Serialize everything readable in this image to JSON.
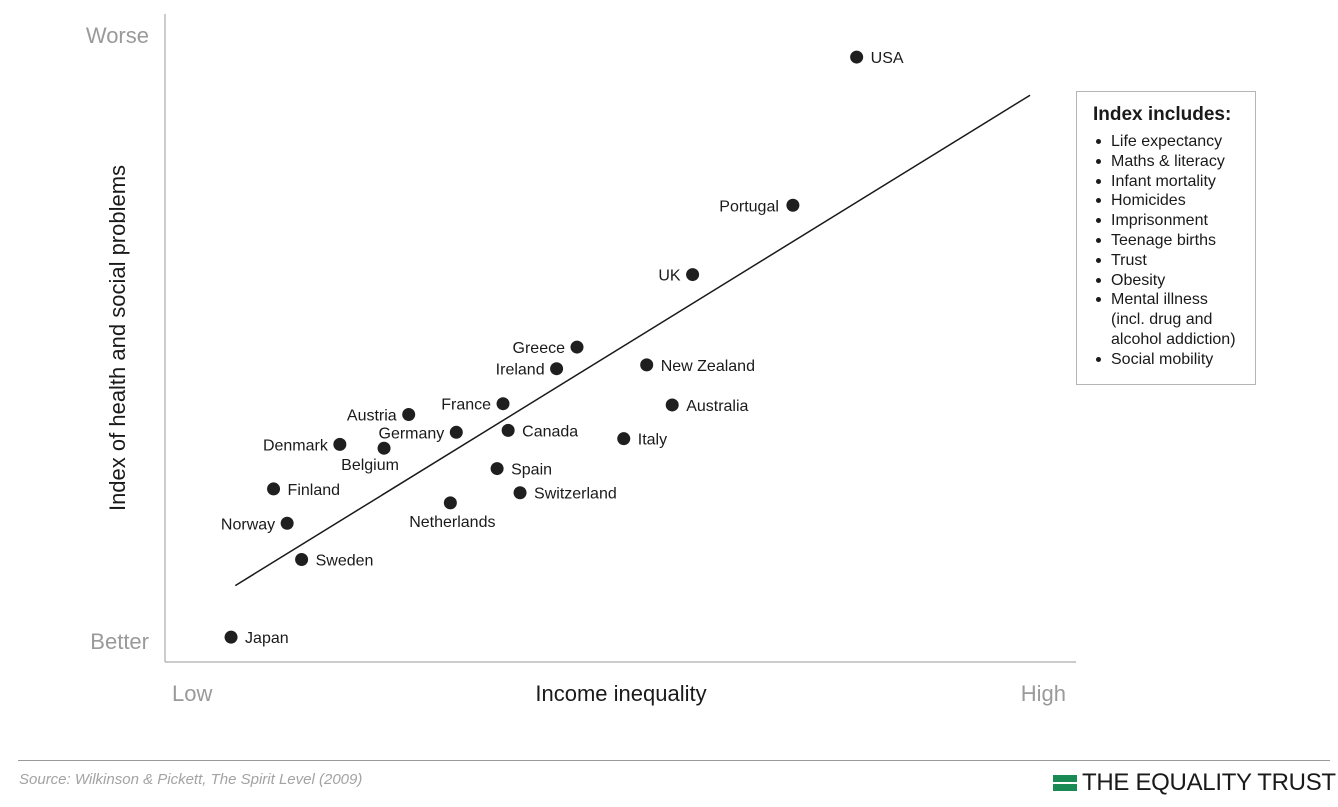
{
  "chart_data": {
    "type": "scatter",
    "xlabel": "Income inequality",
    "ylabel": "Index of health and social problems",
    "x_low_label": "Low",
    "x_high_label": "High",
    "y_low_label": "Better",
    "y_high_label": "Worse",
    "xlim": [
      0,
      100
    ],
    "ylim": [
      0,
      100
    ],
    "points": [
      {
        "label": "USA",
        "x": 78.9,
        "y": 94.8
      },
      {
        "label": "Portugal",
        "x": 71.4,
        "y": 71.5
      },
      {
        "label": "UK",
        "x": 59.6,
        "y": 60.6
      },
      {
        "label": "Greece",
        "x": 46.0,
        "y": 49.2
      },
      {
        "label": "Ireland",
        "x": 43.6,
        "y": 45.8
      },
      {
        "label": "New Zealand",
        "x": 54.2,
        "y": 46.4
      },
      {
        "label": "France",
        "x": 37.3,
        "y": 40.3
      },
      {
        "label": "Australia",
        "x": 57.2,
        "y": 40.1
      },
      {
        "label": "Austria",
        "x": 26.2,
        "y": 38.6
      },
      {
        "label": "Germany",
        "x": 31.8,
        "y": 35.8
      },
      {
        "label": "Canada",
        "x": 37.9,
        "y": 36.1
      },
      {
        "label": "Italy",
        "x": 51.5,
        "y": 34.8
      },
      {
        "label": "Denmark",
        "x": 18.1,
        "y": 33.9
      },
      {
        "label": "Belgium",
        "x": 23.3,
        "y": 33.3
      },
      {
        "label": "Spain",
        "x": 36.6,
        "y": 30.1
      },
      {
        "label": "Finland",
        "x": 10.3,
        "y": 26.9
      },
      {
        "label": "Switzerland",
        "x": 39.3,
        "y": 26.3
      },
      {
        "label": "Netherlands",
        "x": 31.1,
        "y": 24.7
      },
      {
        "label": "Norway",
        "x": 11.9,
        "y": 21.5
      },
      {
        "label": "Sweden",
        "x": 13.6,
        "y": 15.8
      },
      {
        "label": "Japan",
        "x": 5.3,
        "y": 3.6
      }
    ],
    "trendline": [
      {
        "x": 5.8,
        "y": 11.7
      },
      {
        "x": 99.3,
        "y": 88.8
      }
    ]
  },
  "legend": {
    "title": "Index includes:",
    "items": [
      "Life expectancy",
      "Maths & literacy",
      "Infant mortality",
      "Homicides",
      "Imprisonment",
      "Teenage births",
      "Trust",
      "Obesity",
      "Mental illness",
      "(incl. drug and",
      "alcohol addiction)",
      "Social mobility"
    ]
  },
  "footer": {
    "source": "Source: Wilkinson & Pickett, The Spirit Level (2009)",
    "brand": "THE EQUALITY TRUST",
    "brand_color": "#1a8a55"
  }
}
